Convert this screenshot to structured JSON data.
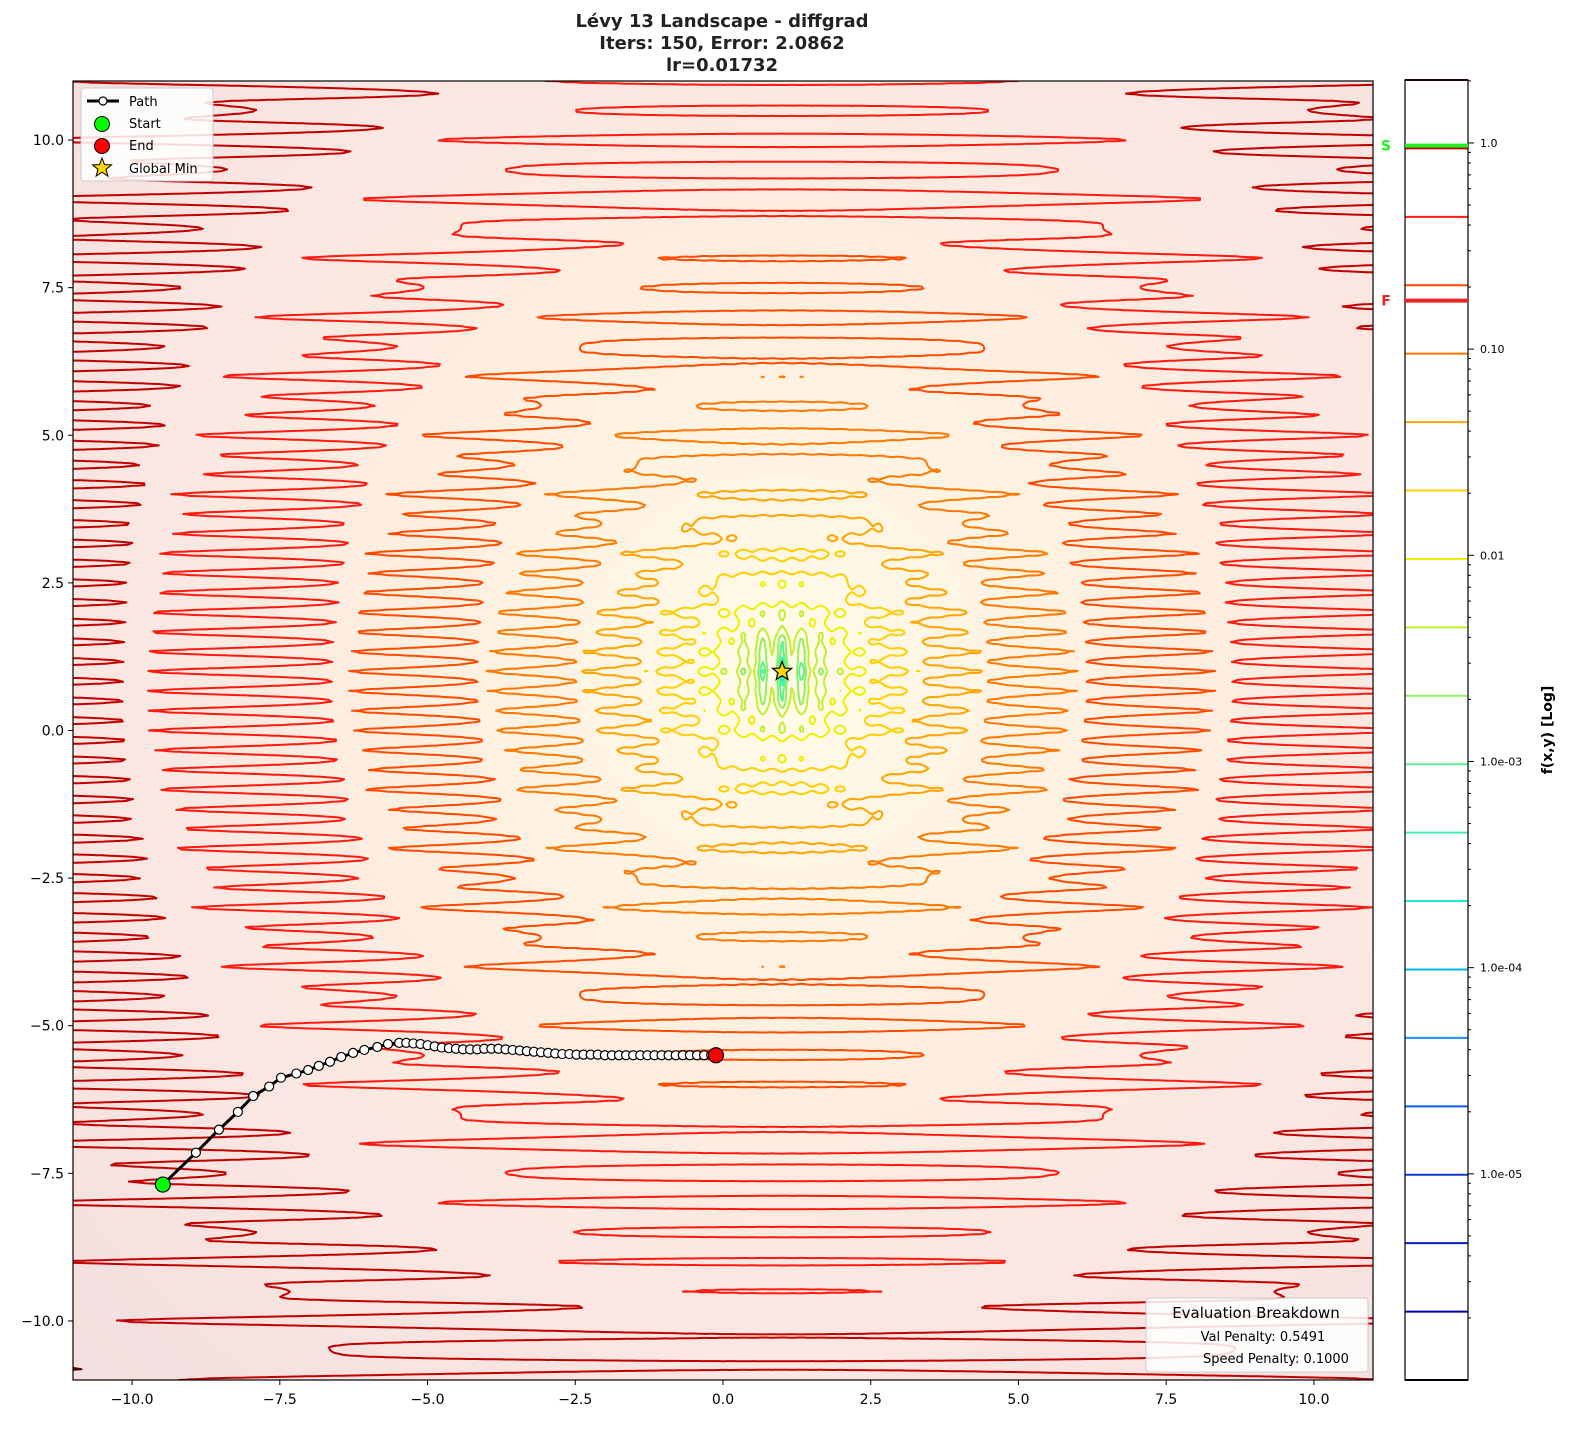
{
  "chart_data": {
    "type": "contour",
    "title_lines": [
      "Lévy 13 Landscape - diffgrad",
      "Iters: 150, Error: 2.0862",
      "lr=0.01732"
    ],
    "xlim": [
      -11,
      11
    ],
    "ylim": [
      -11,
      11
    ],
    "x_ticks": [
      -10.0,
      -7.5,
      -5.0,
      -2.5,
      0.0,
      2.5,
      5.0,
      7.5,
      10.0
    ],
    "x_tick_labels": [
      "−10.0",
      "−7.5",
      "−5.0",
      "−2.5",
      "0.0",
      "2.5",
      "5.0",
      "7.5",
      "10.0"
    ],
    "y_ticks": [
      10.0,
      7.5,
      5.0,
      2.5,
      0.0,
      -2.5,
      -5.0,
      -7.5,
      -10.0
    ],
    "y_tick_labels": [
      "10.0",
      "7.5",
      "5.0",
      "2.5",
      "0.0",
      "−2.5",
      "−5.0",
      "−7.5",
      "−10.0"
    ],
    "grid": false,
    "function": "levy13",
    "colorbar": {
      "label": "f(x,y) [Log]",
      "scale": "log",
      "range": [
        1e-06,
        2.02
      ],
      "n_levels": 20,
      "ticks": [
        1.0,
        0.1,
        0.01,
        0.001,
        0.0001,
        1e-05
      ],
      "tick_labels": [
        "1.0",
        "0.10",
        "0.01",
        "1.0e-03",
        "1.0e-04",
        "1.0e-05"
      ],
      "level_colors": [
        "#00004a",
        "#0000a8",
        "#0a1ec8",
        "#1038e0",
        "#1458e8",
        "#1e90ff",
        "#00b8f0",
        "#20e8d0",
        "#40f0b0",
        "#60f090",
        "#90f060",
        "#c0f030",
        "#eef000",
        "#ffd000",
        "#ffa500",
        "#ff7800",
        "#ff4a00",
        "#ff1a10",
        "#c00000",
        "#500000"
      ],
      "markers": [
        {
          "label": "S",
          "value": 0.97,
          "color": "#22ee22"
        },
        {
          "label": "F",
          "value": 0.172,
          "color": "#ee2222"
        }
      ]
    },
    "path": {
      "name": "Path",
      "points": [
        [
          -9.48,
          -7.69
        ],
        [
          -8.92,
          -7.15
        ],
        [
          -8.53,
          -6.76
        ],
        [
          -8.21,
          -6.46
        ],
        [
          -7.95,
          -6.19
        ],
        [
          -7.68,
          -6.03
        ],
        [
          -7.48,
          -5.88
        ],
        [
          -7.22,
          -5.81
        ],
        [
          -7.02,
          -5.75
        ],
        [
          -6.84,
          -5.68
        ],
        [
          -6.65,
          -5.61
        ],
        [
          -6.46,
          -5.53
        ],
        [
          -6.26,
          -5.46
        ],
        [
          -6.07,
          -5.41
        ],
        [
          -5.85,
          -5.36
        ],
        [
          -5.67,
          -5.31
        ],
        [
          -5.48,
          -5.29
        ],
        [
          -5.36,
          -5.29
        ],
        [
          -5.24,
          -5.3
        ],
        [
          -5.12,
          -5.31
        ],
        [
          -5.0,
          -5.33
        ],
        [
          -4.88,
          -5.35
        ],
        [
          -4.76,
          -5.37
        ],
        [
          -4.64,
          -5.38
        ],
        [
          -4.52,
          -5.39
        ],
        [
          -4.4,
          -5.4
        ],
        [
          -4.28,
          -5.4
        ],
        [
          -4.16,
          -5.4
        ],
        [
          -4.04,
          -5.39
        ],
        [
          -3.92,
          -5.39
        ],
        [
          -3.8,
          -5.39
        ],
        [
          -3.68,
          -5.4
        ],
        [
          -3.56,
          -5.41
        ],
        [
          -3.44,
          -5.42
        ],
        [
          -3.32,
          -5.43
        ],
        [
          -3.2,
          -5.44
        ],
        [
          -3.08,
          -5.45
        ],
        [
          -2.96,
          -5.46
        ],
        [
          -2.84,
          -5.47
        ],
        [
          -2.72,
          -5.48
        ],
        [
          -2.6,
          -5.48
        ],
        [
          -2.48,
          -5.49
        ],
        [
          -2.36,
          -5.49
        ],
        [
          -2.24,
          -5.49
        ],
        [
          -2.12,
          -5.49
        ],
        [
          -2.0,
          -5.5
        ],
        [
          -1.88,
          -5.5
        ],
        [
          -1.76,
          -5.5
        ],
        [
          -1.64,
          -5.5
        ],
        [
          -1.52,
          -5.5
        ],
        [
          -1.4,
          -5.5
        ],
        [
          -1.28,
          -5.5
        ],
        [
          -1.16,
          -5.5
        ],
        [
          -1.04,
          -5.5
        ],
        [
          -0.92,
          -5.5
        ],
        [
          -0.8,
          -5.5
        ],
        [
          -0.68,
          -5.5
        ],
        [
          -0.56,
          -5.5
        ],
        [
          -0.44,
          -5.5
        ],
        [
          -0.32,
          -5.5
        ],
        [
          -0.2,
          -5.5
        ],
        [
          -0.12,
          -5.5
        ]
      ]
    },
    "start": {
      "name": "Start",
      "x": -9.48,
      "y": -7.69,
      "color": "#00ff00"
    },
    "end": {
      "name": "End",
      "x": -0.12,
      "y": -5.5,
      "color": "#ff0000"
    },
    "global_min": {
      "name": "Global Min",
      "x": 1.0,
      "y": 1.0,
      "color": "#ffd700"
    },
    "legend": {
      "placement": "upper-left",
      "entries": [
        "Path",
        "Start",
        "End",
        "Global Min"
      ]
    },
    "evaluation_box": {
      "title": "Evaluation Breakdown",
      "lines": [
        "Val Penalty: 0.5491",
        "Speed Penalty: 0.1000"
      ],
      "placement": "lower-right"
    }
  }
}
